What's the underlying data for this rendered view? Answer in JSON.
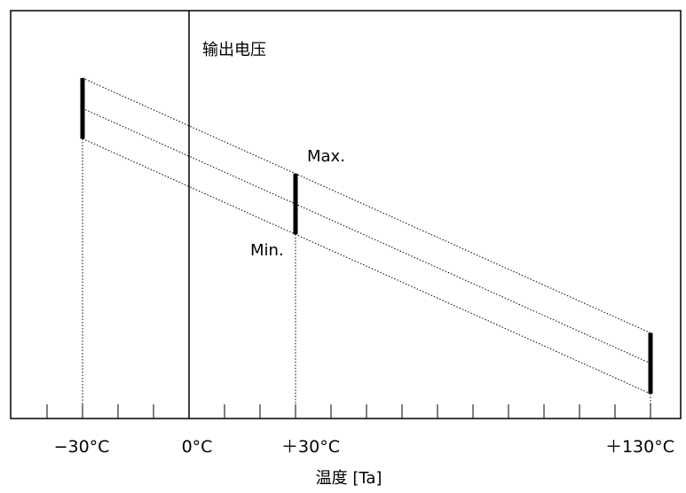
{
  "chart_data": {
    "type": "line",
    "title": "",
    "ylabel": "输出电压",
    "xlabel": "温度 [Ta]",
    "x_tick_labels": [
      {
        "x": -30,
        "label": "−30°C"
      },
      {
        "x": 0,
        "label": "0°C"
      },
      {
        "x": 30,
        "label": "＋30°C"
      },
      {
        "x": 130,
        "label": "＋130°C"
      }
    ],
    "xlim": [
      -50,
      140
    ],
    "ylim": [
      0,
      100
    ],
    "minor_tick_step": 10,
    "series": [
      {
        "name": "Max.",
        "x": [
          -30,
          130
        ],
        "y": [
          100,
          16
        ]
      },
      {
        "name": "",
        "x": [
          -30,
          130
        ],
        "y": [
          90,
          6
        ]
      },
      {
        "name": "Min.",
        "x": [
          -30,
          130
        ],
        "y": [
          80,
          -4
        ]
      }
    ],
    "annotations": [
      "Max.",
      "Min."
    ],
    "range_bars_at": [
      -30,
      30,
      130
    ],
    "grid": false
  }
}
